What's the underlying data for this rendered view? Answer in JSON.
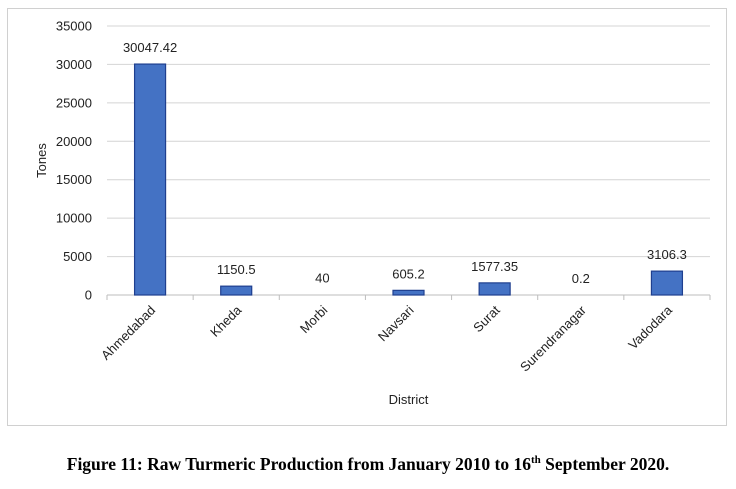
{
  "chart_data": {
    "type": "bar",
    "categories": [
      "Ahmedabad",
      "Kheda",
      "Morbi",
      "Navsari",
      "Surat",
      "Surendranagar",
      "Vadodara"
    ],
    "values": [
      30047.42,
      1150.5,
      40,
      605.2,
      1577.35,
      0.2,
      3106.3
    ],
    "data_labels": [
      "30047.42",
      "1150.5",
      "40",
      "605.2",
      "1577.35",
      "0.2",
      "3106.3"
    ],
    "xlabel": "District",
    "ylabel": "Tones",
    "ylim": [
      0,
      35000
    ],
    "yticks": [
      0,
      5000,
      10000,
      15000,
      20000,
      25000,
      30000,
      35000
    ],
    "grid": true,
    "bar_color": "#4472C4",
    "bar_edge_color": "#1F3F8F"
  },
  "caption": {
    "prefix": "Figure 11: Raw Turmeric Production from January 2010 to 16",
    "sup": "th",
    "suffix": " September 2020."
  }
}
